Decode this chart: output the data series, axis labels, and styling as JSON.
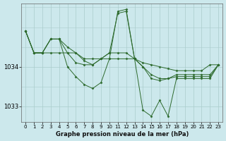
{
  "bg_color": "#cce8ec",
  "plot_bg_color": "#cce8ec",
  "grid_color": "#aacccc",
  "line_color": "#2d6a2d",
  "marker_color": "#2d6a2d",
  "xlabel": "Graphe pression niveau de la mer (hPa)",
  "ylim": [
    1032.6,
    1035.6
  ],
  "xlim": [
    -0.5,
    23.5
  ],
  "yticks": [
    1033,
    1034
  ],
  "xticks": [
    0,
    1,
    2,
    3,
    4,
    5,
    6,
    7,
    8,
    9,
    10,
    11,
    12,
    13,
    14,
    15,
    16,
    17,
    18,
    19,
    20,
    21,
    22,
    23
  ],
  "series": [
    [
      1034.9,
      1034.35,
      1034.35,
      1034.35,
      1034.35,
      1034.35,
      1034.35,
      1034.2,
      1034.2,
      1034.2,
      1034.2,
      1034.2,
      1034.2,
      1034.2,
      1034.1,
      1034.05,
      1034.0,
      1033.95,
      1033.9,
      1033.9,
      1033.9,
      1033.9,
      1034.05,
      1034.05
    ],
    [
      1034.9,
      1034.35,
      1034.35,
      1034.7,
      1034.7,
      1034.35,
      1034.1,
      1034.05,
      1034.05,
      1034.2,
      1034.35,
      1035.35,
      1035.4,
      1034.2,
      1034.0,
      1033.7,
      1033.65,
      1033.7,
      1033.8,
      1033.8,
      1033.8,
      1033.8,
      1033.8,
      1034.05
    ],
    [
      1034.9,
      1034.35,
      1034.35,
      1034.7,
      1034.7,
      1034.0,
      1033.75,
      1033.55,
      1033.45,
      1033.6,
      1034.2,
      1035.4,
      1035.45,
      1034.2,
      1032.9,
      1032.75,
      1033.15,
      1032.75,
      1033.7,
      1033.7,
      1033.7,
      1033.7,
      1033.7,
      1034.05
    ],
    [
      1034.9,
      1034.35,
      1034.35,
      1034.7,
      1034.7,
      1034.5,
      1034.35,
      1034.15,
      1034.05,
      1034.2,
      1034.35,
      1034.35,
      1034.35,
      1034.2,
      1034.0,
      1033.8,
      1033.7,
      1033.7,
      1033.75,
      1033.75,
      1033.75,
      1033.75,
      1033.75,
      1034.05
    ]
  ]
}
